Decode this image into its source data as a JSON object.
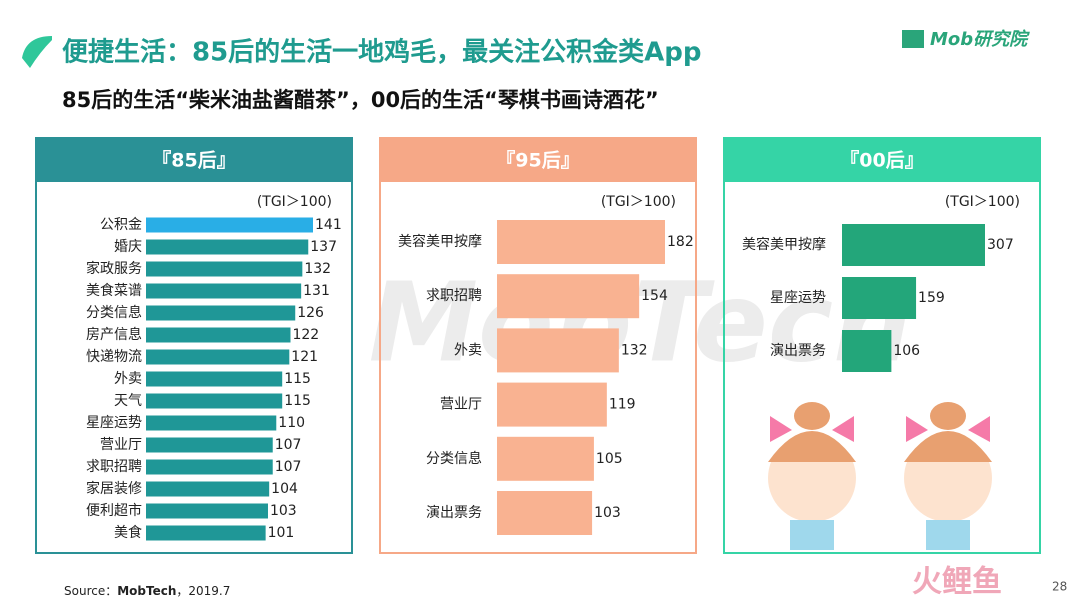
{
  "title": "便捷生活：85后的生活一地鸡毛，最关注公积金类App",
  "subtitle": "85后的生活“柴米油盐酱醋茶”，00后的生活“琴棋书画诗酒花”",
  "logo": "Mob研究院",
  "watermark": "MobTech",
  "source_label": "Source：",
  "source_name": "MobTech",
  "source_date": "，2019.7",
  "page_number": "28",
  "corner_mark": "火鲤鱼",
  "chart_data": [
    {
      "type": "bar",
      "orientation": "horizontal",
      "title": "『85后』",
      "subtitle": "(TGI＞100)",
      "header_color": "#2a9196",
      "categories": [
        "公积金",
        "婚庆",
        "家政服务",
        "美食菜谱",
        "分类信息",
        "房产信息",
        "快递物流",
        "外卖",
        "天气",
        "星座运势",
        "营业厅",
        "求职招聘",
        "家居装修",
        "便利超市",
        "美食"
      ],
      "values": [
        141,
        137,
        132,
        131,
        126,
        122,
        121,
        115,
        115,
        110,
        107,
        107,
        104,
        103,
        101
      ],
      "colors": [
        "#29aee6",
        "#1f9797",
        "#1f9797",
        "#1f9797",
        "#1f9797",
        "#1f9797",
        "#1f9797",
        "#1f9797",
        "#1f9797",
        "#1f9797",
        "#1f9797",
        "#1f9797",
        "#1f9797",
        "#1f9797",
        "#1f9797"
      ]
    },
    {
      "type": "bar",
      "orientation": "horizontal",
      "title": "『95后』",
      "subtitle": "(TGI＞100)",
      "header_color": "#f6a887",
      "categories": [
        "美容美甲按摩",
        "求职招聘",
        "外卖",
        "营业厅",
        "分类信息",
        "演出票务"
      ],
      "values": [
        182,
        154,
        132,
        119,
        105,
        103
      ],
      "color": "#f9b291"
    },
    {
      "type": "bar",
      "orientation": "horizontal",
      "title": "『00后』",
      "subtitle": "(TGI＞100)",
      "header_color": "#35d4a6",
      "categories": [
        "美容美甲按摩",
        "星座运势",
        "演出票务"
      ],
      "values": [
        307,
        159,
        106
      ],
      "color": "#23a67a"
    }
  ]
}
